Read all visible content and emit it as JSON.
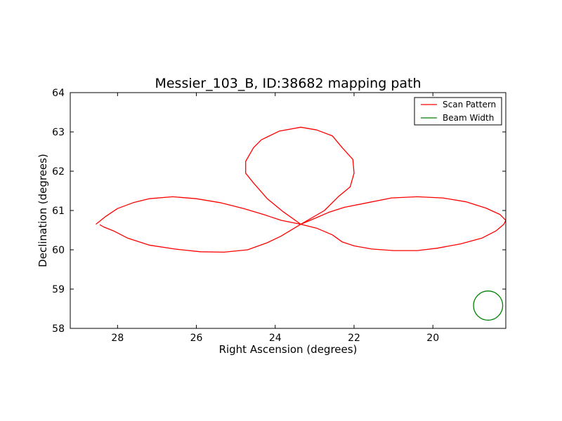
{
  "chart_data": {
    "type": "line",
    "title": "Messier_103_B, ID:38682 mapping path",
    "xlabel": "Right Ascension (degrees)",
    "ylabel": "Declination (degrees)",
    "xlim": [
      29.2,
      18.15
    ],
    "ylim": [
      58,
      64
    ],
    "x_ticks": [
      28,
      26,
      24,
      22,
      20
    ],
    "y_ticks": [
      58,
      59,
      60,
      61,
      62,
      63,
      64
    ],
    "x_tick_labels": [
      "28",
      "26",
      "24",
      "22",
      "20"
    ],
    "y_tick_labels": [
      "58",
      "59",
      "60",
      "61",
      "62",
      "63",
      "64"
    ],
    "grid": false,
    "legend": "top-right",
    "series": [
      {
        "name": "Scan Pattern",
        "color": "#ff0000",
        "x": [
          28.55,
          28.3,
          28.0,
          27.6,
          27.2,
          26.6,
          26.0,
          25.4,
          24.8,
          24.3,
          23.85,
          23.35,
          22.95,
          22.55,
          22.3,
          22.0,
          21.55,
          21.0,
          20.4,
          19.9,
          19.3,
          18.75,
          18.4,
          18.2,
          18.15,
          18.3,
          18.65,
          19.15,
          19.75,
          20.4,
          21.05,
          21.65,
          22.25,
          22.65,
          22.95,
          23.35,
          23.8,
          24.2,
          24.55,
          24.75,
          24.75,
          24.55,
          24.35,
          23.9,
          23.35,
          22.95,
          22.55,
          22.3,
          22.03,
          22.0,
          22.1,
          22.4,
          22.75,
          23.35,
          23.85,
          24.2,
          24.7,
          25.3,
          25.9,
          26.55,
          27.2,
          27.75,
          28.1,
          28.35,
          28.45
        ],
        "y": [
          60.65,
          60.85,
          61.05,
          61.2,
          61.3,
          61.35,
          61.3,
          61.2,
          61.05,
          60.9,
          60.75,
          60.65,
          60.55,
          60.38,
          60.2,
          60.1,
          60.02,
          59.98,
          59.98,
          60.04,
          60.15,
          60.3,
          60.48,
          60.65,
          60.75,
          60.9,
          61.06,
          61.22,
          61.32,
          61.35,
          61.32,
          61.2,
          61.08,
          60.95,
          60.82,
          60.65,
          60.97,
          61.3,
          61.7,
          61.95,
          62.25,
          62.6,
          62.8,
          63.02,
          63.12,
          63.05,
          62.9,
          62.6,
          62.3,
          61.95,
          61.6,
          61.35,
          61.0,
          60.65,
          60.35,
          60.18,
          60.0,
          59.94,
          59.95,
          60.02,
          60.12,
          60.3,
          60.48,
          60.58,
          60.64
        ]
      },
      {
        "name": "Beam Width",
        "color": "#008000",
        "type": "circle",
        "center": [
          18.6,
          58.58
        ],
        "radius": 0.37
      }
    ]
  }
}
